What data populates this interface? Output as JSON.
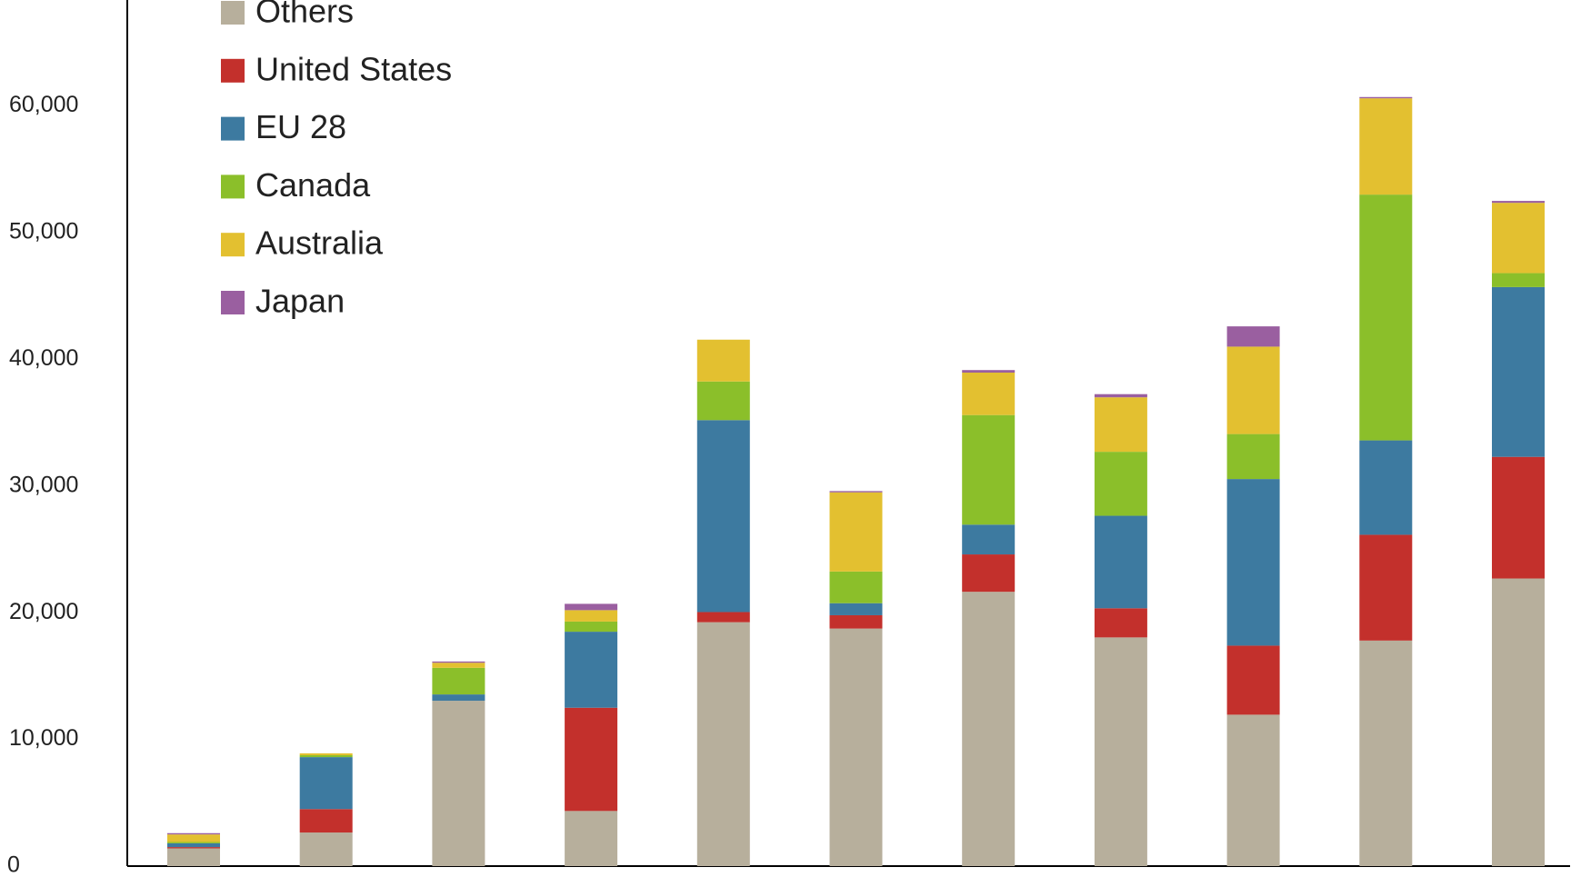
{
  "chart_data": {
    "type": "stacked_bar",
    "categories": [
      null,
      null,
      null,
      null,
      null,
      null,
      null,
      null,
      null,
      null,
      null
    ],
    "series": [
      {
        "name": "Others",
        "color": "#b7af9c",
        "values": [
          1400,
          2650,
          13050,
          4350,
          19250,
          18750,
          21650,
          18050,
          11950,
          17800,
          22700
        ]
      },
      {
        "name": "United States",
        "color": "#c3302c",
        "values": [
          100,
          1850,
          0,
          8150,
          800,
          1050,
          2950,
          2300,
          5450,
          8350,
          9600
        ]
      },
      {
        "name": "EU 28",
        "color": "#3d7aa0",
        "values": [
          300,
          4100,
          500,
          6000,
          15150,
          950,
          2350,
          7300,
          13150,
          7450,
          13400
        ]
      },
      {
        "name": "Canada",
        "color": "#8bbf2a",
        "values": [
          100,
          150,
          2100,
          800,
          3050,
          2500,
          8650,
          5050,
          3550,
          19400,
          1100
        ]
      },
      {
        "name": "Australia",
        "color": "#e3c030",
        "values": [
          600,
          150,
          400,
          900,
          3300,
          6250,
          3350,
          4300,
          6900,
          7600,
          5550
        ]
      },
      {
        "name": "Japan",
        "color": "#9a5fa0",
        "values": [
          100,
          0,
          100,
          500,
          0,
          100,
          200,
          250,
          1600,
          100,
          150
        ]
      }
    ],
    "ylim": [
      0,
      68000
    ],
    "yticks": [
      0,
      {
        "value": 10000,
        "label": "10,000"
      },
      {
        "value": 20000,
        "label": "20,000"
      },
      {
        "value": 30000,
        "label": "30,000"
      },
      {
        "value": 40000,
        "label": "40,000"
      },
      {
        "value": 50000,
        "label": "50,000"
      },
      {
        "value": 60000,
        "label": "60,000"
      }
    ]
  }
}
